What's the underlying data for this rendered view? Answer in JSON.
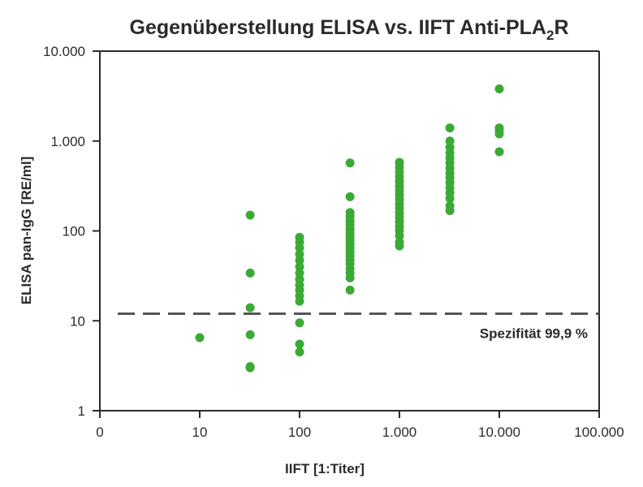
{
  "chart_data": {
    "type": "scatter",
    "title": {
      "main": "Gegenüberstellung ELISA vs. IIFT Anti-PLA",
      "subscript": "2",
      "suffix": "R"
    },
    "xlabel": "IIFT [1:Titer]",
    "ylabel": "ELISA pan-IgG [RE/ml]",
    "x_scale": "log",
    "y_scale": "log",
    "x_ticks": [
      {
        "value": 1,
        "label": "0"
      },
      {
        "value": 10,
        "label": "10"
      },
      {
        "value": 100,
        "label": "100"
      },
      {
        "value": 1000,
        "label": "1.000"
      },
      {
        "value": 10000,
        "label": "10.000"
      },
      {
        "value": 100000,
        "label": "100.000"
      }
    ],
    "y_ticks": [
      {
        "value": 1,
        "label": "1"
      },
      {
        "value": 10,
        "label": "10"
      },
      {
        "value": 100,
        "label": "100"
      },
      {
        "value": 1000,
        "label": "1.000"
      },
      {
        "value": 10000,
        "label": "10.000"
      }
    ],
    "xlim": [
      1,
      100000
    ],
    "ylim": [
      1,
      10000
    ],
    "grid": false,
    "point_color": "#3aaa35",
    "line_color": "#555555",
    "reference_line": {
      "y": 12,
      "style": "dashed",
      "label": "Spezifität 99,9 %"
    },
    "points": [
      {
        "x": 10,
        "y": 6.5
      },
      {
        "x": 32,
        "y": 150
      },
      {
        "x": 32,
        "y": 34
      },
      {
        "x": 32,
        "y": 14
      },
      {
        "x": 32,
        "y": 7
      },
      {
        "x": 32,
        "y": 3.1
      },
      {
        "x": 32,
        "y": 3
      },
      {
        "x": 100,
        "y": 85
      },
      {
        "x": 100,
        "y": 75
      },
      {
        "x": 100,
        "y": 65
      },
      {
        "x": 100,
        "y": 55
      },
      {
        "x": 100,
        "y": 47
      },
      {
        "x": 100,
        "y": 40
      },
      {
        "x": 100,
        "y": 34
      },
      {
        "x": 100,
        "y": 29
      },
      {
        "x": 100,
        "y": 25
      },
      {
        "x": 100,
        "y": 22
      },
      {
        "x": 100,
        "y": 19
      },
      {
        "x": 100,
        "y": 16.5
      },
      {
        "x": 100,
        "y": 9.5
      },
      {
        "x": 100,
        "y": 5.5
      },
      {
        "x": 100,
        "y": 4.5
      },
      {
        "x": 320,
        "y": 570
      },
      {
        "x": 320,
        "y": 240
      },
      {
        "x": 320,
        "y": 160
      },
      {
        "x": 320,
        "y": 145
      },
      {
        "x": 320,
        "y": 130
      },
      {
        "x": 320,
        "y": 118
      },
      {
        "x": 320,
        "y": 106
      },
      {
        "x": 320,
        "y": 96
      },
      {
        "x": 320,
        "y": 87
      },
      {
        "x": 320,
        "y": 79
      },
      {
        "x": 320,
        "y": 72
      },
      {
        "x": 320,
        "y": 65
      },
      {
        "x": 320,
        "y": 59
      },
      {
        "x": 320,
        "y": 53
      },
      {
        "x": 320,
        "y": 48
      },
      {
        "x": 320,
        "y": 43
      },
      {
        "x": 320,
        "y": 38
      },
      {
        "x": 320,
        "y": 34
      },
      {
        "x": 320,
        "y": 30
      },
      {
        "x": 320,
        "y": 22
      },
      {
        "x": 1000,
        "y": 580
      },
      {
        "x": 1000,
        "y": 510
      },
      {
        "x": 1000,
        "y": 450
      },
      {
        "x": 1000,
        "y": 400
      },
      {
        "x": 1000,
        "y": 355
      },
      {
        "x": 1000,
        "y": 315
      },
      {
        "x": 1000,
        "y": 280
      },
      {
        "x": 1000,
        "y": 250
      },
      {
        "x": 1000,
        "y": 225
      },
      {
        "x": 1000,
        "y": 200
      },
      {
        "x": 1000,
        "y": 180
      },
      {
        "x": 1000,
        "y": 160
      },
      {
        "x": 1000,
        "y": 142
      },
      {
        "x": 1000,
        "y": 126
      },
      {
        "x": 1000,
        "y": 112
      },
      {
        "x": 1000,
        "y": 100
      },
      {
        "x": 1000,
        "y": 88
      },
      {
        "x": 1000,
        "y": 75
      },
      {
        "x": 1000,
        "y": 68
      },
      {
        "x": 3200,
        "y": 1400
      },
      {
        "x": 3200,
        "y": 1000
      },
      {
        "x": 3200,
        "y": 850
      },
      {
        "x": 3200,
        "y": 740
      },
      {
        "x": 3200,
        "y": 650
      },
      {
        "x": 3200,
        "y": 570
      },
      {
        "x": 3200,
        "y": 500
      },
      {
        "x": 3200,
        "y": 440
      },
      {
        "x": 3200,
        "y": 390
      },
      {
        "x": 3200,
        "y": 345
      },
      {
        "x": 3200,
        "y": 300
      },
      {
        "x": 3200,
        "y": 265
      },
      {
        "x": 3200,
        "y": 230
      },
      {
        "x": 3200,
        "y": 190
      },
      {
        "x": 3200,
        "y": 168
      },
      {
        "x": 10000,
        "y": 3800
      },
      {
        "x": 10000,
        "y": 1400
      },
      {
        "x": 10000,
        "y": 1300
      },
      {
        "x": 10000,
        "y": 1200
      },
      {
        "x": 10000,
        "y": 760
      }
    ]
  }
}
